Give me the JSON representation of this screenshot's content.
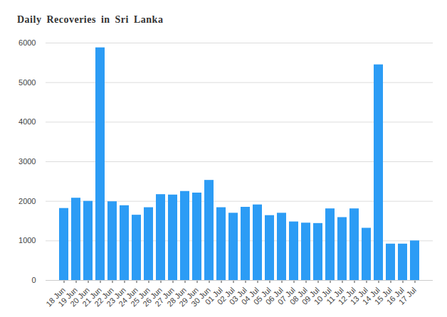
{
  "chart_data": {
    "type": "bar",
    "title": "Daily Recoveries in Sri Lanka",
    "categories": [
      "18 Jun",
      "19 Jun",
      "20 Jun",
      "21 Jun",
      "22 Jun",
      "23 Jun",
      "24 Jun",
      "25 Jun",
      "26 Jun",
      "27 Jun",
      "28 Jun",
      "29 Jun",
      "30 Jun",
      "01 Jul",
      "02 Jul",
      "03 Jul",
      "04 Jul",
      "05 Jul",
      "06 Jul",
      "07 Jul",
      "08 Jul",
      "09 Jul",
      "10 Jul",
      "11 Jul",
      "12 Jul",
      "13 Jul",
      "14 Jul",
      "15 Jul",
      "16 Jul",
      "17 Jul"
    ],
    "values": [
      1820,
      2080,
      2000,
      5880,
      1990,
      1890,
      1650,
      1840,
      2170,
      2160,
      2250,
      2210,
      2530,
      1840,
      1700,
      1850,
      1910,
      1640,
      1700,
      1480,
      1450,
      1440,
      1810,
      1590,
      1810,
      1320,
      5450,
      920,
      920,
      1000
    ],
    "color": "#2c9cf5",
    "ylim": [
      0,
      6000
    ],
    "yticks": [
      0,
      1000,
      2000,
      3000,
      4000,
      5000,
      6000
    ],
    "grid": true
  }
}
